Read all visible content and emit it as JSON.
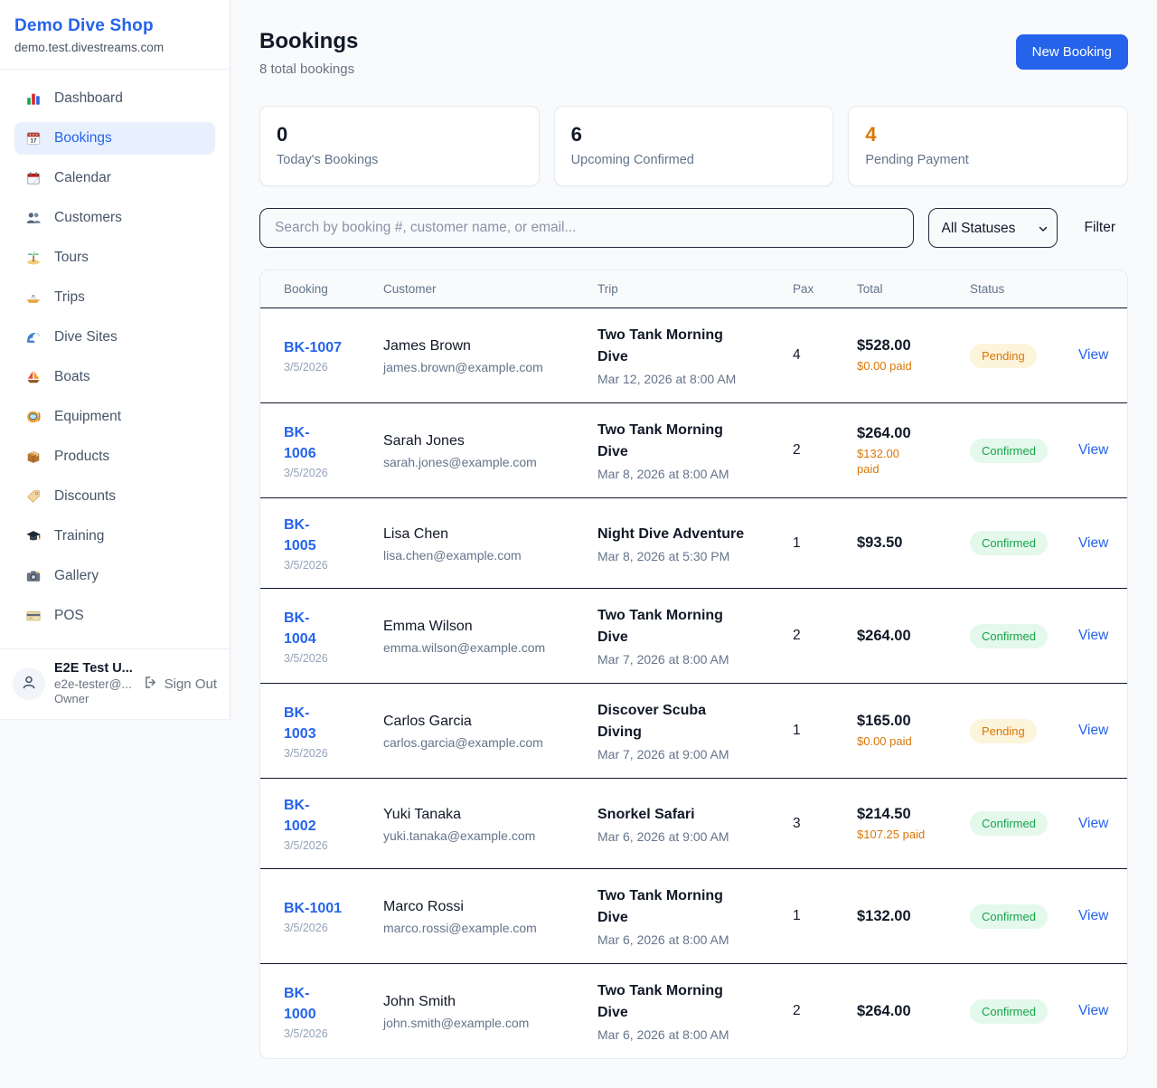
{
  "sidebar": {
    "brand": {
      "name": "Demo Dive Shop",
      "domain": "demo.test.divestreams.com"
    },
    "items": [
      {
        "label": "Dashboard",
        "icon": "bar-chart",
        "active": false
      },
      {
        "label": "Bookings",
        "icon": "calendar-date",
        "active": true
      },
      {
        "label": "Calendar",
        "icon": "spiral-calendar",
        "active": false
      },
      {
        "label": "Customers",
        "icon": "people",
        "active": false
      },
      {
        "label": "Tours",
        "icon": "island",
        "active": false
      },
      {
        "label": "Trips",
        "icon": "speedboat",
        "active": false
      },
      {
        "label": "Dive Sites",
        "icon": "wave",
        "active": false
      },
      {
        "label": "Boats",
        "icon": "sailboat",
        "active": false
      },
      {
        "label": "Equipment",
        "icon": "diving-mask",
        "active": false
      },
      {
        "label": "Products",
        "icon": "package",
        "active": false
      },
      {
        "label": "Discounts",
        "icon": "tag",
        "active": false
      },
      {
        "label": "Training",
        "icon": "graduation-cap",
        "active": false
      },
      {
        "label": "Gallery",
        "icon": "camera",
        "active": false
      },
      {
        "label": "POS",
        "icon": "credit-card",
        "active": false
      }
    ],
    "user": {
      "name": "E2E Test U...",
      "email": "e2e-tester@...",
      "role": "Owner",
      "sign_out_label": "Sign Out"
    }
  },
  "header": {
    "title": "Bookings",
    "subtitle": "8 total bookings",
    "new_booking_label": "New Booking"
  },
  "stats": [
    {
      "value": "0",
      "label": "Today's Bookings",
      "highlight": false
    },
    {
      "value": "6",
      "label": "Upcoming Confirmed",
      "highlight": false
    },
    {
      "value": "4",
      "label": "Pending Payment",
      "highlight": true
    }
  ],
  "filters": {
    "search_placeholder": "Search by booking #, customer name, or email...",
    "status_selected": "All Statuses",
    "filter_label": "Filter"
  },
  "table": {
    "columns": {
      "booking": "Booking",
      "customer": "Customer",
      "trip": "Trip",
      "pax": "Pax",
      "total": "Total",
      "status": "Status",
      "action": ""
    },
    "rows": [
      {
        "id": "BK-1007",
        "date": "3/5/2026",
        "customer": "James Brown",
        "email": "james.brown@example.com",
        "trip": "Two Tank Morning\nDive",
        "trip_time": "Mar 12, 2026 at 8:00 AM",
        "pax": "4",
        "total": "$528.00",
        "paid": "$0.00 paid",
        "status": "Pending",
        "action": "View"
      },
      {
        "id": "BK-\n1006",
        "date": "3/5/2026",
        "customer": "Sarah Jones",
        "email": "sarah.jones@example.com",
        "trip": "Two Tank Morning\nDive",
        "trip_time": "Mar 8, 2026 at 8:00 AM",
        "pax": "2",
        "total": "$264.00",
        "paid": "$132.00\npaid",
        "status": "Confirmed",
        "action": "View"
      },
      {
        "id": "BK-\n1005",
        "date": "3/5/2026",
        "customer": "Lisa Chen",
        "email": "lisa.chen@example.com",
        "trip": "Night Dive Adventure",
        "trip_time": "Mar 8, 2026 at 5:30 PM",
        "pax": "1",
        "total": "$93.50",
        "paid": "",
        "status": "Confirmed",
        "action": "View"
      },
      {
        "id": "BK-\n1004",
        "date": "3/5/2026",
        "customer": "Emma Wilson",
        "email": "emma.wilson@example.com",
        "trip": "Two Tank Morning\nDive",
        "trip_time": "Mar 7, 2026 at 8:00 AM",
        "pax": "2",
        "total": "$264.00",
        "paid": "",
        "status": "Confirmed",
        "action": "View"
      },
      {
        "id": "BK-\n1003",
        "date": "3/5/2026",
        "customer": "Carlos Garcia",
        "email": "carlos.garcia@example.com",
        "trip": "Discover Scuba\nDiving",
        "trip_time": "Mar 7, 2026 at 9:00 AM",
        "pax": "1",
        "total": "$165.00",
        "paid": "$0.00 paid",
        "status": "Pending",
        "action": "View"
      },
      {
        "id": "BK-\n1002",
        "date": "3/5/2026",
        "customer": "Yuki Tanaka",
        "email": "yuki.tanaka@example.com",
        "trip": "Snorkel Safari",
        "trip_time": "Mar 6, 2026 at 9:00 AM",
        "pax": "3",
        "total": "$214.50",
        "paid": "$107.25 paid",
        "status": "Confirmed",
        "action": "View"
      },
      {
        "id": "BK-1001",
        "date": "3/5/2026",
        "customer": "Marco Rossi",
        "email": "marco.rossi@example.com",
        "trip": "Two Tank Morning\nDive",
        "trip_time": "Mar 6, 2026 at 8:00 AM",
        "pax": "1",
        "total": "$132.00",
        "paid": "",
        "status": "Confirmed",
        "action": "View"
      },
      {
        "id": "BK-\n1000",
        "date": "3/5/2026",
        "customer": "John Smith",
        "email": "john.smith@example.com",
        "trip": "Two Tank Morning\nDive",
        "trip_time": "Mar 6, 2026 at 8:00 AM",
        "pax": "2",
        "total": "$264.00",
        "paid": "",
        "status": "Confirmed",
        "action": "View"
      }
    ]
  },
  "colors": {
    "accent_blue": "#2563eb",
    "active_nav_bg": "#e8f0fe",
    "page_bg": "#f8fafc",
    "pending_text": "#d97706",
    "pending_bg": "#fdf4dc",
    "confirmed_text": "#16a34a",
    "confirmed_bg": "#e4f8ec",
    "paid_orange": "#d97706",
    "dark_divider": "#0f172a"
  }
}
